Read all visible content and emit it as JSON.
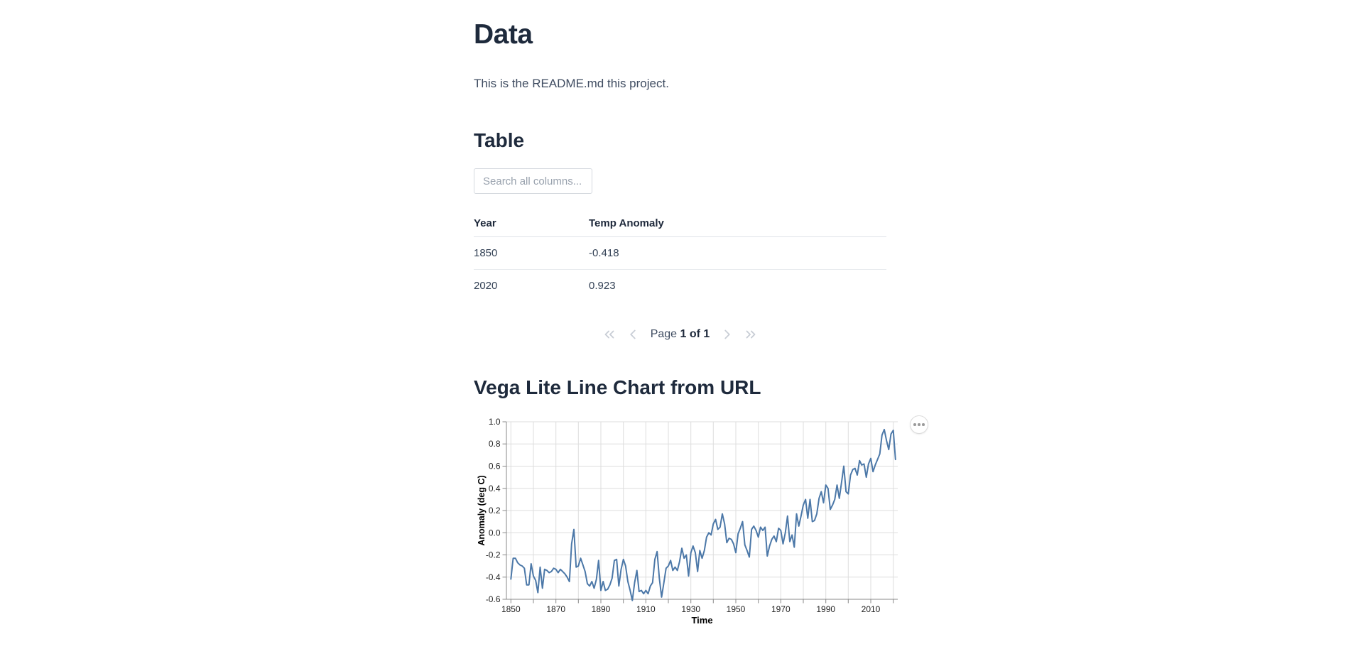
{
  "page": {
    "title": "Data",
    "intro": "This is the README.md this project."
  },
  "table_section": {
    "heading": "Table",
    "search_placeholder": "Search all columns...",
    "columns": [
      "Year",
      "Temp Anomaly"
    ],
    "rows": [
      [
        "1850",
        "-0.418"
      ],
      [
        "2020",
        "0.923"
      ]
    ],
    "pagination": {
      "page_label": "Page",
      "page_value": "1 of 1"
    }
  },
  "chart_section": {
    "heading": "Vega Lite Line Chart from URL"
  },
  "chart_data": {
    "type": "line",
    "title": "",
    "xlabel": "Time",
    "ylabel": "Anomaly (deg C)",
    "xlim": [
      1848,
      2022
    ],
    "ylim": [
      -0.6,
      1.0
    ],
    "x_grid_step_years": 10,
    "x_labeled_ticks": [
      1850,
      1870,
      1890,
      1910,
      1930,
      1950,
      1970,
      1990,
      2010
    ],
    "y_ticks": [
      1.0,
      0.8,
      0.6,
      0.4,
      0.2,
      0.0,
      -0.2,
      -0.4,
      -0.6
    ],
    "grid": true,
    "legend": "none",
    "line_color": "#4c78a8",
    "axis_color": "#888888",
    "grid_color": "#dddddd",
    "series": [
      {
        "name": "Anomaly (deg C)",
        "x": [
          1850,
          1851,
          1852,
          1853,
          1854,
          1855,
          1856,
          1857,
          1858,
          1859,
          1860,
          1861,
          1862,
          1863,
          1864,
          1865,
          1866,
          1867,
          1868,
          1869,
          1870,
          1871,
          1872,
          1873,
          1874,
          1875,
          1876,
          1877,
          1878,
          1879,
          1880,
          1881,
          1882,
          1883,
          1884,
          1885,
          1886,
          1887,
          1888,
          1889,
          1890,
          1891,
          1892,
          1893,
          1894,
          1895,
          1896,
          1897,
          1898,
          1899,
          1900,
          1901,
          1902,
          1903,
          1904,
          1905,
          1906,
          1907,
          1908,
          1909,
          1910,
          1911,
          1912,
          1913,
          1914,
          1915,
          1916,
          1917,
          1918,
          1919,
          1920,
          1921,
          1922,
          1923,
          1924,
          1925,
          1926,
          1927,
          1928,
          1929,
          1930,
          1931,
          1932,
          1933,
          1934,
          1935,
          1936,
          1937,
          1938,
          1939,
          1940,
          1941,
          1942,
          1943,
          1944,
          1945,
          1946,
          1947,
          1948,
          1949,
          1950,
          1951,
          1952,
          1953,
          1954,
          1955,
          1956,
          1957,
          1958,
          1959,
          1960,
          1961,
          1962,
          1963,
          1964,
          1965,
          1966,
          1967,
          1968,
          1969,
          1970,
          1971,
          1972,
          1973,
          1974,
          1975,
          1976,
          1977,
          1978,
          1979,
          1980,
          1981,
          1982,
          1983,
          1984,
          1985,
          1986,
          1987,
          1988,
          1989,
          1990,
          1991,
          1992,
          1993,
          1994,
          1995,
          1996,
          1997,
          1998,
          1999,
          2000,
          2001,
          2002,
          2003,
          2004,
          2005,
          2006,
          2007,
          2008,
          2009,
          2010,
          2011,
          2012,
          2013,
          2014,
          2015,
          2016,
          2017,
          2018,
          2019,
          2020,
          2021
        ],
        "values": [
          -0.418,
          -0.23,
          -0.23,
          -0.27,
          -0.29,
          -0.3,
          -0.32,
          -0.47,
          -0.47,
          -0.28,
          -0.39,
          -0.43,
          -0.54,
          -0.31,
          -0.5,
          -0.33,
          -0.34,
          -0.36,
          -0.35,
          -0.32,
          -0.33,
          -0.36,
          -0.33,
          -0.35,
          -0.37,
          -0.4,
          -0.44,
          -0.1,
          0.03,
          -0.31,
          -0.3,
          -0.23,
          -0.29,
          -0.35,
          -0.46,
          -0.48,
          -0.44,
          -0.5,
          -0.42,
          -0.25,
          -0.52,
          -0.44,
          -0.52,
          -0.51,
          -0.47,
          -0.41,
          -0.25,
          -0.24,
          -0.48,
          -0.33,
          -0.24,
          -0.3,
          -0.44,
          -0.52,
          -0.61,
          -0.45,
          -0.34,
          -0.53,
          -0.52,
          -0.55,
          -0.52,
          -0.55,
          -0.48,
          -0.45,
          -0.24,
          -0.17,
          -0.41,
          -0.58,
          -0.45,
          -0.32,
          -0.3,
          -0.25,
          -0.34,
          -0.31,
          -0.34,
          -0.26,
          -0.14,
          -0.23,
          -0.2,
          -0.39,
          -0.18,
          -0.12,
          -0.18,
          -0.35,
          -0.16,
          -0.23,
          -0.16,
          -0.04,
          0.0,
          -0.02,
          0.08,
          0.12,
          0.03,
          0.05,
          0.17,
          0.08,
          -0.09,
          -0.05,
          -0.06,
          -0.1,
          -0.18,
          -0.01,
          0.04,
          0.1,
          -0.11,
          -0.16,
          -0.22,
          0.03,
          0.06,
          0.02,
          -0.04,
          0.05,
          0.02,
          0.05,
          -0.21,
          -0.12,
          -0.06,
          -0.03,
          -0.08,
          0.04,
          0.02,
          -0.1,
          0.0,
          0.15,
          -0.08,
          -0.02,
          -0.13,
          0.17,
          0.06,
          0.15,
          0.25,
          0.3,
          0.13,
          0.3,
          0.1,
          0.11,
          0.17,
          0.31,
          0.37,
          0.27,
          0.43,
          0.4,
          0.21,
          0.25,
          0.3,
          0.43,
          0.31,
          0.45,
          0.6,
          0.37,
          0.35,
          0.52,
          0.57,
          0.58,
          0.52,
          0.65,
          0.61,
          0.62,
          0.5,
          0.62,
          0.67,
          0.55,
          0.61,
          0.66,
          0.71,
          0.88,
          0.93,
          0.83,
          0.75,
          0.89,
          0.923,
          0.66
        ]
      }
    ]
  }
}
